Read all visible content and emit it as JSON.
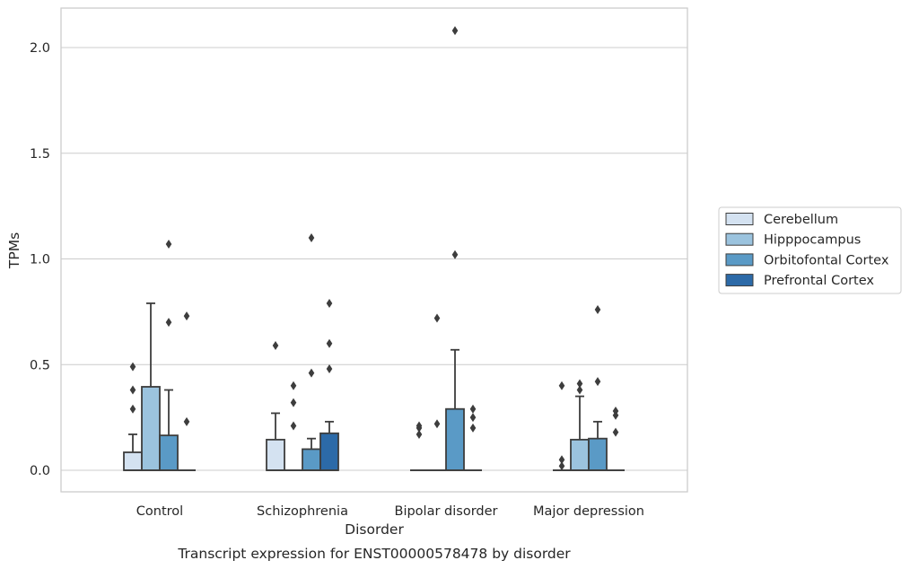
{
  "chart_data": {
    "type": "boxplot",
    "title": "",
    "caption": "Transcript expression for ENST00000578478 by disorder",
    "xlabel": "Disorder",
    "ylabel": "TPMs",
    "ylim": [
      -0.1,
      2.2
    ],
    "yticks": [
      "0.0",
      "0.5",
      "1.0",
      "1.5",
      "2.0"
    ],
    "grid": true,
    "legend_position": "right",
    "categories": [
      "Control",
      "Schizophrenia",
      "Bipolar disorder",
      "Major depression"
    ],
    "series": [
      {
        "name": "Cerebellum",
        "color": "#d4e2f1",
        "boxes": [
          {
            "min": 0,
            "q1": 0,
            "median": 0,
            "q3": 0.085,
            "max": 0.17,
            "outliers": [
              0.29,
              0.38,
              0.49
            ]
          },
          {
            "min": 0,
            "q1": 0,
            "median": 0,
            "q3": 0.145,
            "max": 0.27,
            "outliers": [
              0.59
            ]
          },
          {
            "min": 0,
            "q1": 0,
            "median": 0,
            "q3": 0,
            "max": 0,
            "outliers": [
              0.17,
              0.2,
              0.21
            ]
          },
          {
            "min": 0,
            "q1": 0,
            "median": 0,
            "q3": 0,
            "max": 0,
            "outliers": [
              0.02,
              0.05,
              0.4
            ]
          }
        ]
      },
      {
        "name": "Hipppocampus",
        "color": "#9bc3de",
        "boxes": [
          {
            "min": 0,
            "q1": 0,
            "median": 0,
            "q3": 0.395,
            "max": 0.79,
            "outliers": []
          },
          {
            "min": 0,
            "q1": 0,
            "median": 0,
            "q3": 0,
            "max": 0,
            "outliers": [
              0.21,
              0.32,
              0.4
            ]
          },
          {
            "min": 0,
            "q1": 0,
            "median": 0,
            "q3": 0,
            "max": 0,
            "outliers": [
              0.22,
              0.72
            ]
          },
          {
            "min": 0,
            "q1": 0,
            "median": 0,
            "q3": 0.145,
            "max": 0.35,
            "outliers": [
              0.38,
              0.41
            ]
          }
        ]
      },
      {
        "name": "Orbitofontal Cortex",
        "color": "#5a9ac6",
        "boxes": [
          {
            "min": 0,
            "q1": 0,
            "median": 0,
            "q3": 0.165,
            "max": 0.38,
            "outliers": [
              0.7,
              1.07
            ]
          },
          {
            "min": 0,
            "q1": 0,
            "median": 0,
            "q3": 0.1,
            "max": 0.15,
            "outliers": [
              0.46,
              1.1
            ]
          },
          {
            "min": 0,
            "q1": 0,
            "median": 0,
            "q3": 0.29,
            "max": 0.57,
            "outliers": [
              1.02,
              2.08
            ]
          },
          {
            "min": 0,
            "q1": 0,
            "median": 0,
            "q3": 0.15,
            "max": 0.23,
            "outliers": [
              0.42,
              0.76
            ]
          }
        ]
      },
      {
        "name": "Prefrontal Cortex",
        "color": "#2c6aa8",
        "boxes": [
          {
            "min": 0,
            "q1": 0,
            "median": 0,
            "q3": 0,
            "max": 0,
            "outliers": [
              0.23,
              0.73
            ]
          },
          {
            "min": 0,
            "q1": 0,
            "median": 0,
            "q3": 0.175,
            "max": 0.23,
            "outliers": [
              0.48,
              0.6,
              0.79
            ]
          },
          {
            "min": 0,
            "q1": 0,
            "median": 0,
            "q3": 0,
            "max": 0,
            "outliers": [
              0.2,
              0.25,
              0.29
            ]
          },
          {
            "min": 0,
            "q1": 0,
            "median": 0,
            "q3": 0,
            "max": 0,
            "outliers": [
              0.18,
              0.26,
              0.28
            ]
          }
        ]
      }
    ]
  }
}
